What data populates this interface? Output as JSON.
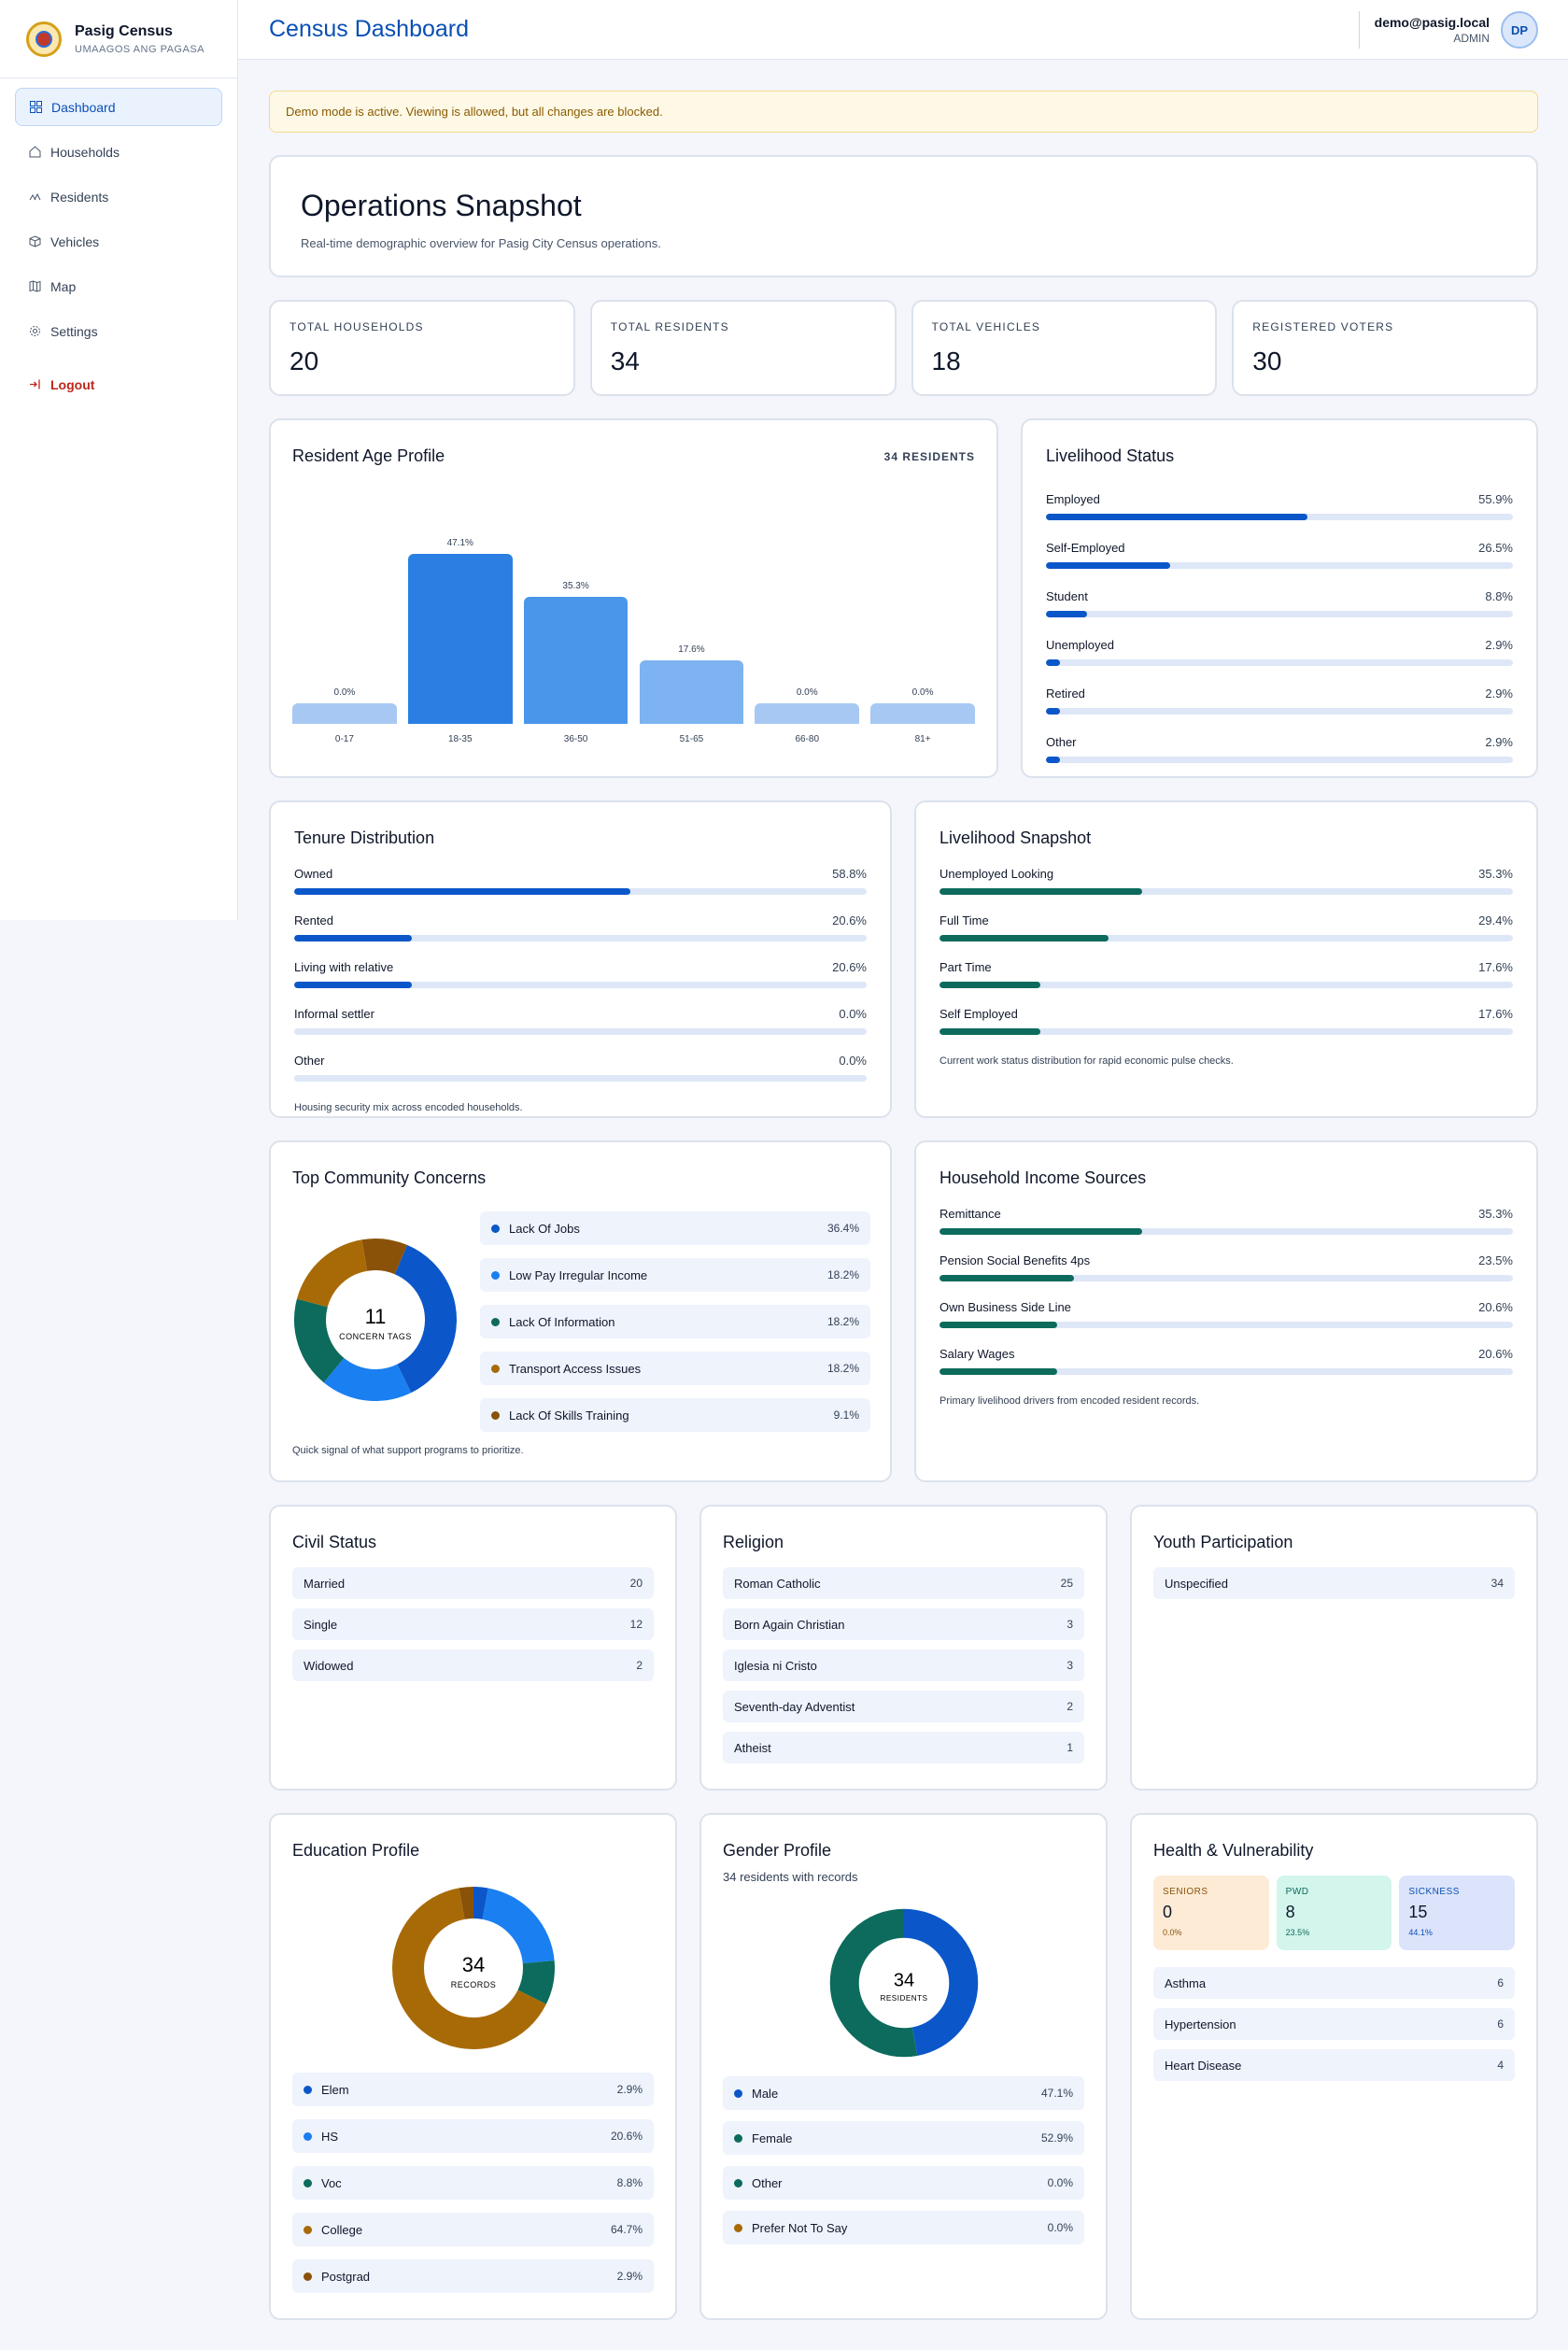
{
  "brand": {
    "title": "Pasig Census",
    "subtitle": "UMAAGOS ANG PAGASA"
  },
  "nav": [
    {
      "label": "Dashboard",
      "icon": "grid-icon",
      "active": true
    },
    {
      "label": "Households",
      "icon": "home-icon"
    },
    {
      "label": "Residents",
      "icon": "users-icon"
    },
    {
      "label": "Vehicles",
      "icon": "box-icon"
    },
    {
      "label": "Map",
      "icon": "map-icon"
    },
    {
      "label": "Settings",
      "icon": "gear-icon"
    }
  ],
  "logout": "Logout",
  "header": {
    "title": "Census Dashboard",
    "email": "demo@pasig.local",
    "role": "ADMIN",
    "initials": "DP"
  },
  "alert": "Demo mode is active. Viewing is allowed, but all changes are blocked.",
  "snapshot": {
    "title": "Operations Snapshot",
    "subtitle": "Real-time demographic overview for Pasig City Census operations."
  },
  "stats": [
    {
      "label": "TOTAL HOUSEHOLDS",
      "value": "20"
    },
    {
      "label": "TOTAL RESIDENTS",
      "value": "34"
    },
    {
      "label": "TOTAL VEHICLES",
      "value": "18"
    },
    {
      "label": "REGISTERED VOTERS",
      "value": "30"
    }
  ],
  "age_profile": {
    "title": "Resident Age Profile",
    "badge": "34 RESIDENTS",
    "chart_data": {
      "type": "bar",
      "categories": [
        "0-17",
        "18-35",
        "36-50",
        "51-65",
        "66-80",
        "81+"
      ],
      "values": [
        0.0,
        47.1,
        35.3,
        17.6,
        0.0,
        0.0
      ],
      "value_labels": [
        "0.0%",
        "47.1%",
        "35.3%",
        "17.6%",
        "0.0%",
        "0.0%"
      ],
      "colors": [
        "#a8c8f4",
        "#2b7fe3",
        "#4a96ea",
        "#7db3f0",
        "#a8c8f4",
        "#a8c8f4"
      ]
    }
  },
  "livelihood_status": {
    "title": "Livelihood Status",
    "items": [
      {
        "label": "Employed",
        "pct": "55.9%",
        "value": 55.9
      },
      {
        "label": "Self-Employed",
        "pct": "26.5%",
        "value": 26.5
      },
      {
        "label": "Student",
        "pct": "8.8%",
        "value": 8.8
      },
      {
        "label": "Unemployed",
        "pct": "2.9%",
        "value": 2.9
      },
      {
        "label": "Retired",
        "pct": "2.9%",
        "value": 2.9
      },
      {
        "label": "Other",
        "pct": "2.9%",
        "value": 2.9
      }
    ]
  },
  "tenure": {
    "title": "Tenure Distribution",
    "items": [
      {
        "label": "Owned",
        "pct": "58.8%",
        "value": 58.8
      },
      {
        "label": "Rented",
        "pct": "20.6%",
        "value": 20.6
      },
      {
        "label": "Living with relative",
        "pct": "20.6%",
        "value": 20.6
      },
      {
        "label": "Informal settler",
        "pct": "0.0%",
        "value": 0.0
      },
      {
        "label": "Other",
        "pct": "0.0%",
        "value": 0.0
      }
    ],
    "note": "Housing security mix across encoded households."
  },
  "livelihood_snapshot": {
    "title": "Livelihood Snapshot",
    "items": [
      {
        "label": "Unemployed Looking",
        "pct": "35.3%",
        "value": 35.3
      },
      {
        "label": "Full Time",
        "pct": "29.4%",
        "value": 29.4
      },
      {
        "label": "Part Time",
        "pct": "17.6%",
        "value": 17.6
      },
      {
        "label": "Self Employed",
        "pct": "17.6%",
        "value": 17.6
      }
    ],
    "note": "Current work status distribution for rapid economic pulse checks."
  },
  "concerns": {
    "title": "Top Community Concerns",
    "center_value": "11",
    "center_label": "CONCERN TAGS",
    "items": [
      {
        "label": "Lack Of Jobs",
        "pct": "36.4%",
        "value": 36.4,
        "color": "#0b57c9"
      },
      {
        "label": "Low Pay Irregular Income",
        "pct": "18.2%",
        "value": 18.2,
        "color": "#1a7ff0"
      },
      {
        "label": "Lack Of Information",
        "pct": "18.2%",
        "value": 18.2,
        "color": "#0c6b5c"
      },
      {
        "label": "Transport Access Issues",
        "pct": "18.2%",
        "value": 18.2,
        "color": "#a86a07"
      },
      {
        "label": "Lack Of Skills Training",
        "pct": "9.1%",
        "value": 9.1,
        "color": "#8a5208"
      }
    ],
    "note": "Quick signal of what support programs to prioritize."
  },
  "income": {
    "title": "Household Income Sources",
    "items": [
      {
        "label": "Remittance",
        "pct": "35.3%",
        "value": 35.3
      },
      {
        "label": "Pension Social Benefits 4ps",
        "pct": "23.5%",
        "value": 23.5
      },
      {
        "label": "Own Business Side Line",
        "pct": "20.6%",
        "value": 20.6
      },
      {
        "label": "Salary Wages",
        "pct": "20.6%",
        "value": 20.6
      }
    ],
    "note": "Primary livelihood drivers from encoded resident records."
  },
  "civil_status": {
    "title": "Civil Status",
    "items": [
      {
        "label": "Married",
        "count": "20"
      },
      {
        "label": "Single",
        "count": "12"
      },
      {
        "label": "Widowed",
        "count": "2"
      }
    ]
  },
  "religion": {
    "title": "Religion",
    "items": [
      {
        "label": "Roman Catholic",
        "count": "25"
      },
      {
        "label": "Born Again Christian",
        "count": "3"
      },
      {
        "label": "Iglesia ni Cristo",
        "count": "3"
      },
      {
        "label": "Seventh-day Adventist",
        "count": "2"
      },
      {
        "label": "Atheist",
        "count": "1"
      }
    ]
  },
  "youth": {
    "title": "Youth Participation",
    "items": [
      {
        "label": "Unspecified",
        "count": "34"
      }
    ]
  },
  "education": {
    "title": "Education Profile",
    "center_value": "34",
    "center_label": "RECORDS",
    "items": [
      {
        "label": "Elem",
        "pct": "2.9%",
        "value": 2.9,
        "color": "#0b57c9"
      },
      {
        "label": "HS",
        "pct": "20.6%",
        "value": 20.6,
        "color": "#1a7ff0"
      },
      {
        "label": "Voc",
        "pct": "8.8%",
        "value": 8.8,
        "color": "#0c6b5c"
      },
      {
        "label": "College",
        "pct": "64.7%",
        "value": 64.7,
        "color": "#a86a07"
      },
      {
        "label": "Postgrad",
        "pct": "2.9%",
        "value": 2.9,
        "color": "#8a5208"
      }
    ]
  },
  "gender": {
    "title": "Gender Profile",
    "subtitle": "34 residents with records",
    "center_value": "34",
    "center_label": "RESIDENTS",
    "items": [
      {
        "label": "Male",
        "pct": "47.1%",
        "value": 47.1,
        "color": "#0b57c9"
      },
      {
        "label": "Female",
        "pct": "52.9%",
        "value": 52.9,
        "color": "#0c6b5c"
      },
      {
        "label": "Other",
        "pct": "0.0%",
        "value": 0.0,
        "color": "#0c6b5c"
      },
      {
        "label": "Prefer Not To Say",
        "pct": "0.0%",
        "value": 0.0,
        "color": "#a86a07"
      }
    ]
  },
  "health": {
    "title": "Health & Vulnerability",
    "tiles": [
      {
        "label": "SENIORS",
        "value": "0",
        "pct": "0.0%",
        "bg": "#fdebd6",
        "fg": "#8a5208"
      },
      {
        "label": "PWD",
        "value": "8",
        "pct": "23.5%",
        "bg": "#d3f5ec",
        "fg": "#0c6b5c"
      },
      {
        "label": "SICKNESS",
        "value": "15",
        "pct": "44.1%",
        "bg": "#dce4fb",
        "fg": "#0b4fb3"
      }
    ],
    "items": [
      {
        "label": "Asthma",
        "count": "6"
      },
      {
        "label": "Hypertension",
        "count": "6"
      },
      {
        "label": "Heart Disease",
        "count": "4"
      }
    ]
  }
}
